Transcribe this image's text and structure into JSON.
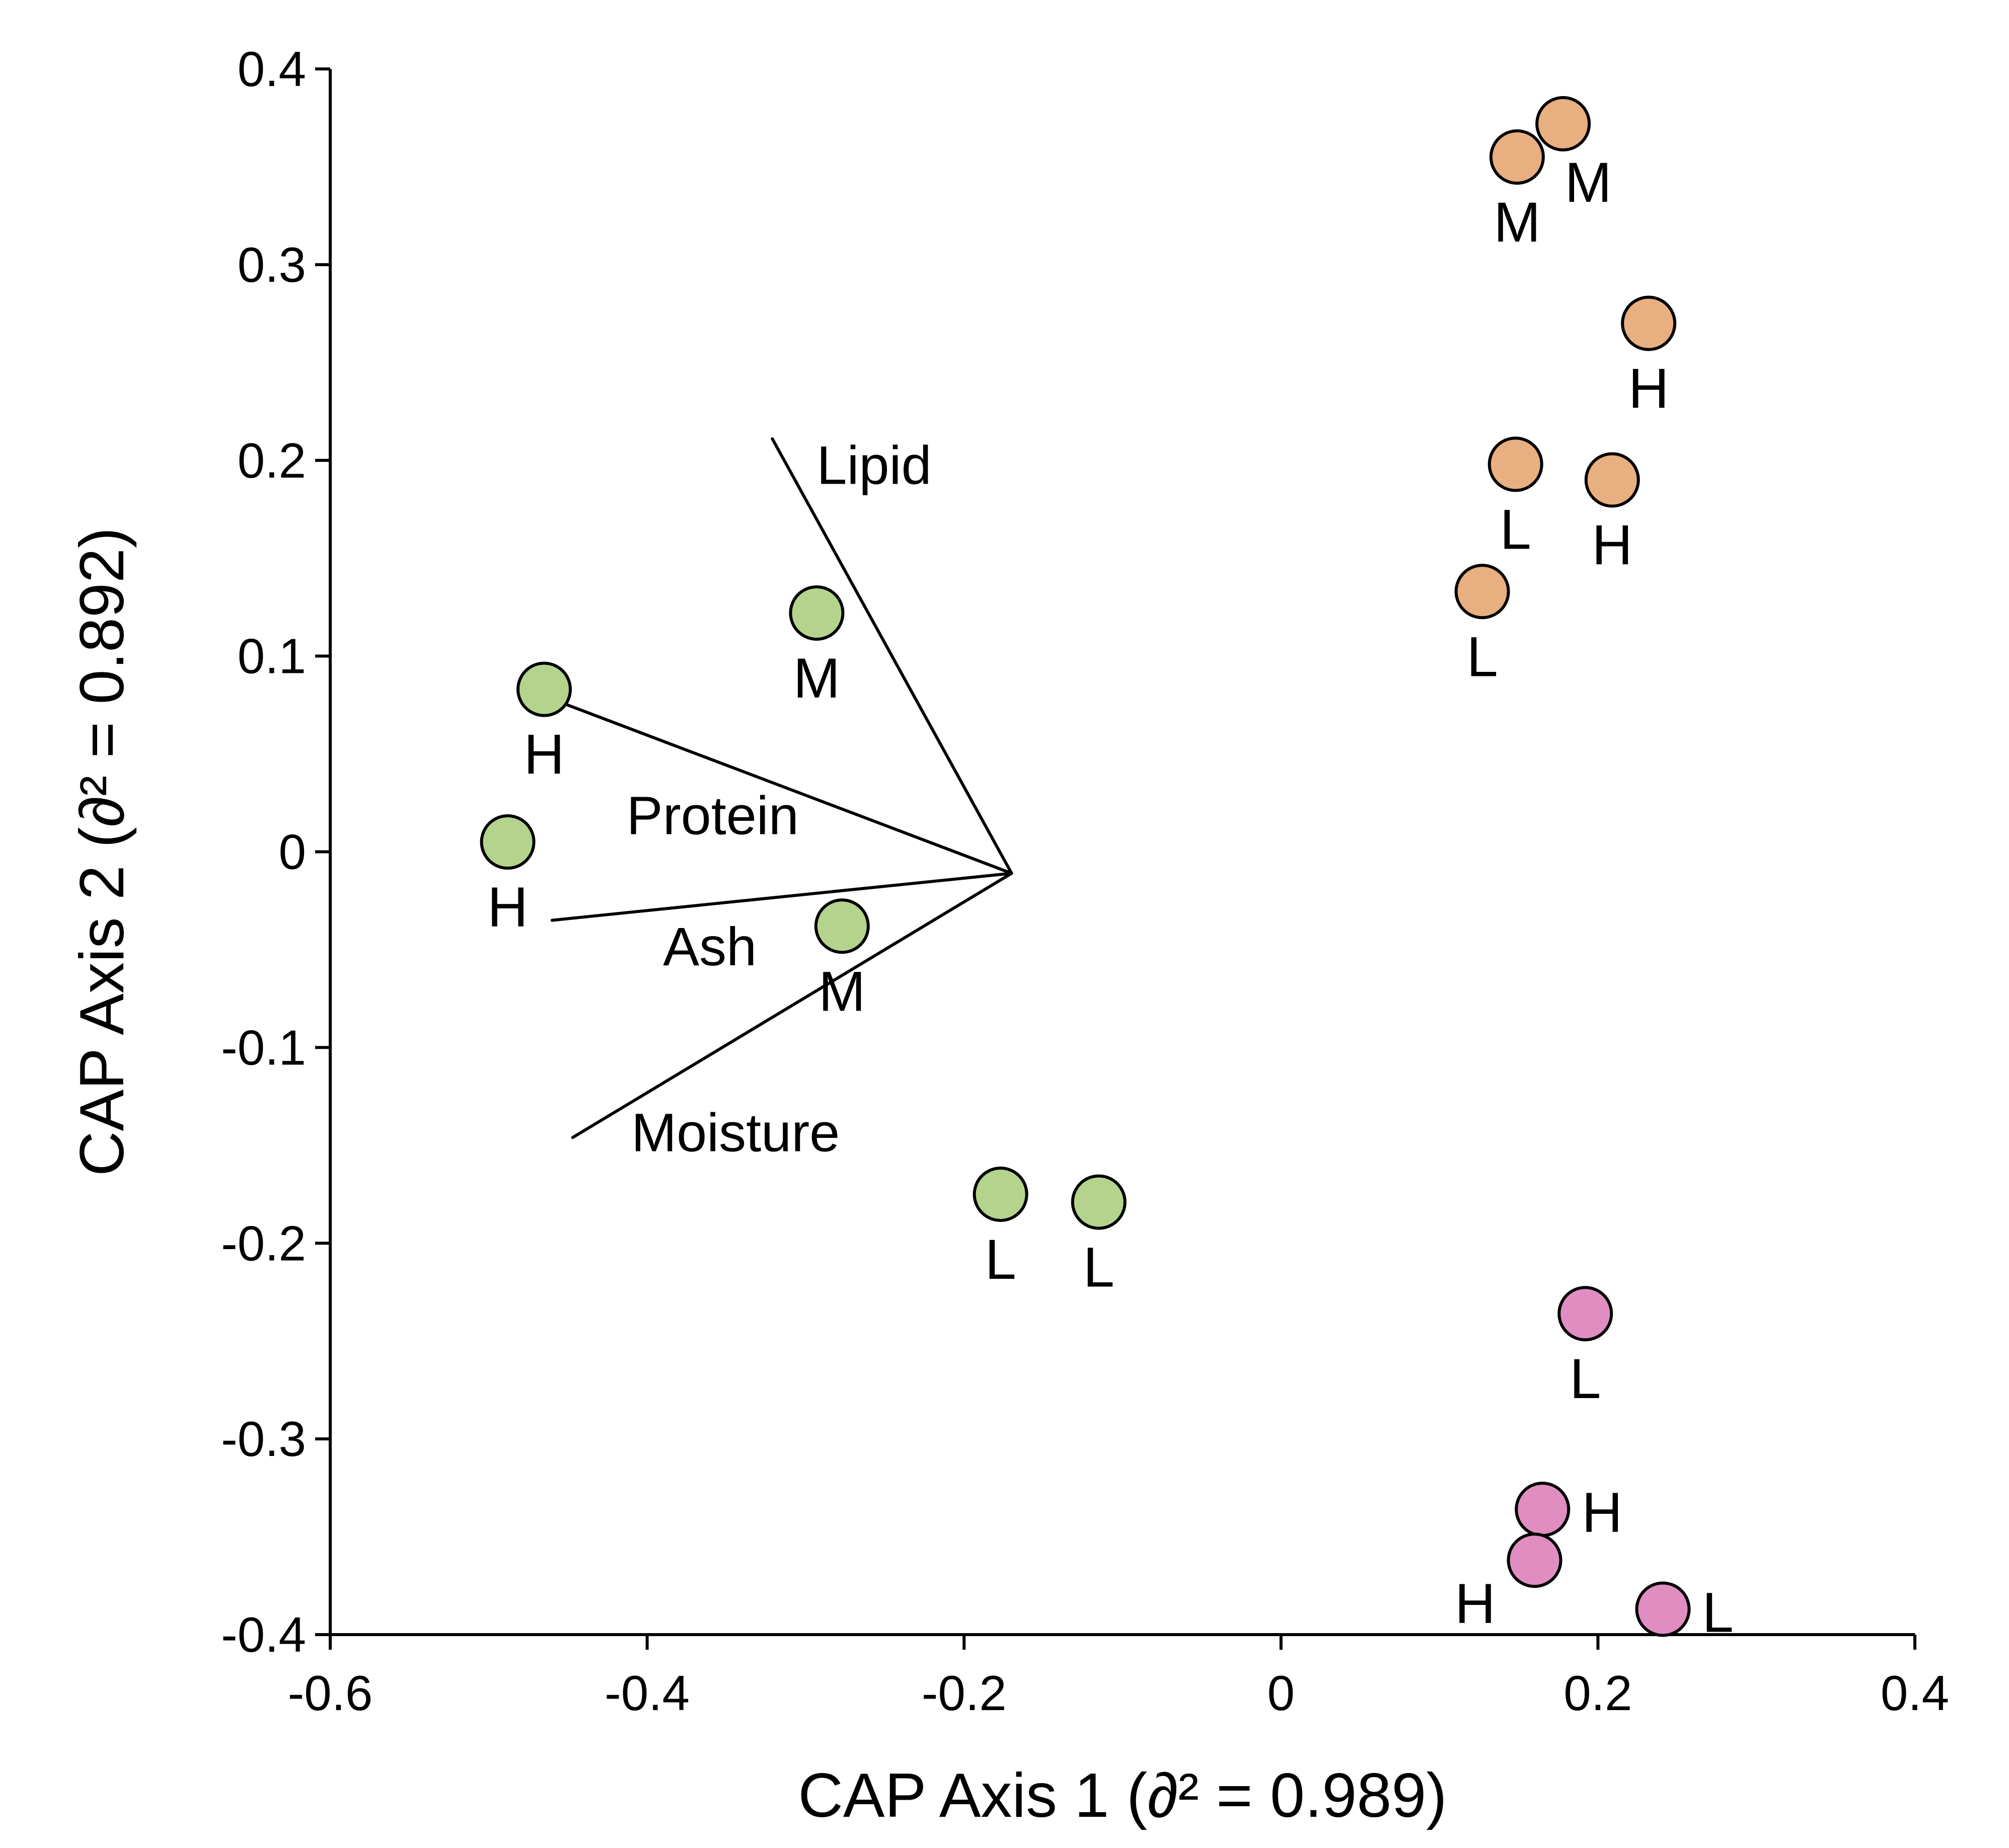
{
  "chart_data": {
    "type": "scatter",
    "xlabel": "CAP Axis 1 (∂² = 0.989)",
    "ylabel": "CAP Axis 2 (∂² = 0.892)",
    "xlim": [
      -0.6,
      0.4
    ],
    "ylim": [
      -0.4,
      0.4
    ],
    "x_ticks": [
      -0.6,
      -0.4,
      -0.2,
      0,
      0.2,
      0.4
    ],
    "y_ticks": [
      0.4,
      0.3,
      0.2,
      0.1,
      0,
      -0.1,
      -0.2,
      -0.3,
      -0.4
    ],
    "x_tick_labels": [
      "-0.6",
      "-0.4",
      "-0.2",
      "0",
      "0.2",
      "0.4"
    ],
    "y_tick_labels": [
      "0.4",
      "0.3",
      "0.2",
      "0.1",
      "0",
      "-0.1",
      "-0.2",
      "-0.3",
      "-0.4"
    ],
    "grid": false,
    "legend": "none",
    "marker_stroke": "#000000",
    "series": [
      {
        "color": "#b4d48e",
        "points": [
          {
            "x": -0.465,
            "y": 0.083,
            "label": "H",
            "label_pos": "below"
          },
          {
            "x": -0.488,
            "y": 0.005,
            "label": "H",
            "label_pos": "below"
          },
          {
            "x": -0.293,
            "y": 0.122,
            "label": "M",
            "label_pos": "below"
          },
          {
            "x": -0.277,
            "y": -0.038,
            "label": "M",
            "label_pos": "below"
          },
          {
            "x": -0.177,
            "y": -0.175,
            "label": "L",
            "label_pos": "below"
          },
          {
            "x": -0.115,
            "y": -0.179,
            "label": "L",
            "label_pos": "below"
          }
        ]
      },
      {
        "color": "#e8af80",
        "points": [
          {
            "x": 0.178,
            "y": 0.372,
            "label": "M",
            "label_pos": "below-right"
          },
          {
            "x": 0.149,
            "y": 0.355,
            "label": "M",
            "label_pos": "below"
          },
          {
            "x": 0.232,
            "y": 0.27,
            "label": "H",
            "label_pos": "below"
          },
          {
            "x": 0.148,
            "y": 0.198,
            "label": "L",
            "label_pos": "below"
          },
          {
            "x": 0.209,
            "y": 0.19,
            "label": "H",
            "label_pos": "below"
          },
          {
            "x": 0.127,
            "y": 0.133,
            "label": "L",
            "label_pos": "below"
          }
        ]
      },
      {
        "color": "#e08ec2",
        "points": [
          {
            "x": 0.192,
            "y": -0.236,
            "label": "L",
            "label_pos": "below"
          },
          {
            "x": 0.165,
            "y": -0.336,
            "label": "H",
            "label_pos": "right"
          },
          {
            "x": 0.16,
            "y": -0.362,
            "label": "H",
            "label_pos": "below-left"
          },
          {
            "x": 0.241,
            "y": -0.387,
            "label": "L",
            "label_pos": "right"
          }
        ]
      }
    ],
    "vectors": [
      {
        "name": "Lipid",
        "from": [
          -0.17,
          -0.011
        ],
        "to": [
          -0.321,
          0.211
        ]
      },
      {
        "name": "Protein",
        "from": [
          -0.17,
          -0.011
        ],
        "to": [
          -0.46,
          0.078
        ]
      },
      {
        "name": "Ash",
        "from": [
          -0.17,
          -0.011
        ],
        "to": [
          -0.46,
          -0.035
        ]
      },
      {
        "name": "Moisture",
        "from": [
          -0.17,
          -0.011
        ],
        "to": [
          -0.447,
          -0.146
        ]
      }
    ]
  }
}
